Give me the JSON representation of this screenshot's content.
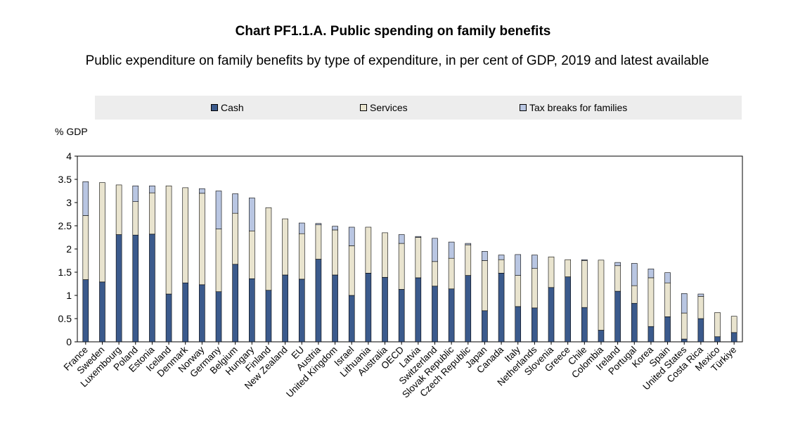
{
  "title": "Chart PF1.1.A. Public spending on family benefits",
  "subtitle": "Public expenditure on family benefits by type of expenditure, in per cent of GDP, 2019 and latest available",
  "colors": {
    "cash": "#3b5a8c",
    "services": "#e9e4cf",
    "tax": "#b9c6e2"
  },
  "chart_data": {
    "type": "bar",
    "stacked": true,
    "ylabel": "% GDP",
    "ylim": [
      0,
      4
    ],
    "yticks": [
      "0",
      "0.5",
      "1",
      "1.5",
      "2",
      "2.5",
      "3",
      "3.5",
      "4"
    ],
    "legend_position": "top",
    "categories": [
      "France",
      "Sweden",
      "Luxembourg",
      "Poland",
      "Estonia",
      "Iceland",
      "Denmark",
      "Norway",
      "Germany",
      "Belgium",
      "Hungary",
      "Finland",
      "New Zealand",
      "EU",
      "Austria",
      "United Kingdom",
      "Israel",
      "Lithuania",
      "Australia",
      "OECD",
      "Latvia",
      "Switzerland",
      "Slovak Republic",
      "Czech Republic",
      "Japan",
      "Canada",
      "Italy",
      "Netherlands",
      "Slovenia",
      "Greece",
      "Chile",
      "Colombia",
      "Ireland",
      "Portugal",
      "Korea",
      "Spain",
      "United States",
      "Costa Rica",
      "Mexico",
      "Türkiye"
    ],
    "series": [
      {
        "name": "Cash",
        "values": [
          1.34,
          1.29,
          2.31,
          2.3,
          2.32,
          1.03,
          1.27,
          1.23,
          1.08,
          1.67,
          1.36,
          1.11,
          1.44,
          1.35,
          1.78,
          1.44,
          1.0,
          1.48,
          1.39,
          1.13,
          1.38,
          1.2,
          1.14,
          1.43,
          0.67,
          1.48,
          0.76,
          0.73,
          1.17,
          1.4,
          0.74,
          0.25,
          1.09,
          0.83,
          0.33,
          0.54,
          0.06,
          0.5,
          0.11,
          0.2
        ]
      },
      {
        "name": "Services",
        "values": [
          1.38,
          2.14,
          1.07,
          0.72,
          0.89,
          2.33,
          2.05,
          1.97,
          1.35,
          1.1,
          1.03,
          1.78,
          1.21,
          0.98,
          0.74,
          0.97,
          1.07,
          0.99,
          0.96,
          0.99,
          0.87,
          0.53,
          0.66,
          0.66,
          1.08,
          0.29,
          0.67,
          0.85,
          0.66,
          0.37,
          1.01,
          1.51,
          0.55,
          0.38,
          1.05,
          0.73,
          0.56,
          0.48,
          0.52,
          0.35
        ]
      },
      {
        "name": "Tax breaks for families",
        "values": [
          0.73,
          0.0,
          0.0,
          0.34,
          0.15,
          0.0,
          0.0,
          0.1,
          0.82,
          0.42,
          0.71,
          0.0,
          0.0,
          0.23,
          0.03,
          0.08,
          0.4,
          0.0,
          0.0,
          0.19,
          0.02,
          0.5,
          0.35,
          0.03,
          0.2,
          0.1,
          0.45,
          0.29,
          0.0,
          0.0,
          0.02,
          0.0,
          0.07,
          0.48,
          0.19,
          0.22,
          0.42,
          0.05,
          0.0,
          0.0
        ]
      }
    ]
  }
}
